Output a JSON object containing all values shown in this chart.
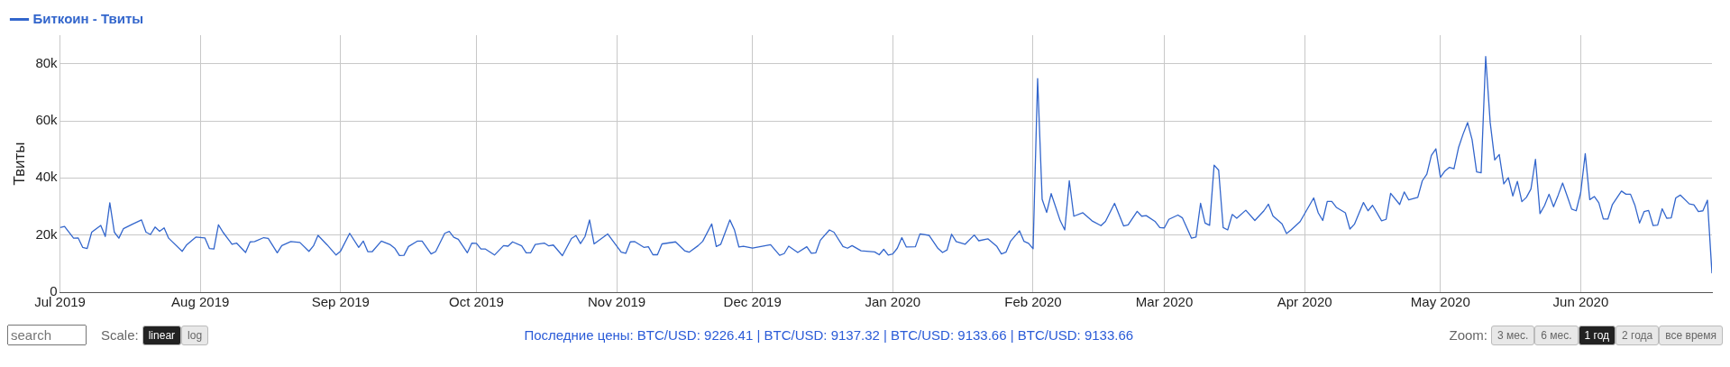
{
  "chart_data": {
    "type": "line",
    "ylabel": "Твиты",
    "legend": "top left",
    "grid": true,
    "marker": "none",
    "line_style": "solid",
    "xlim": [
      "2019-07-01",
      "2020-06-30"
    ],
    "ylim": [
      0,
      90000
    ],
    "xticks": [
      {
        "value": "2019-07-01",
        "label": "Jul 2019"
      },
      {
        "value": "2019-08-01",
        "label": "Aug 2019"
      },
      {
        "value": "2019-09-01",
        "label": "Sep 2019"
      },
      {
        "value": "2019-10-01",
        "label": "Oct 2019"
      },
      {
        "value": "2019-11-01",
        "label": "Nov 2019"
      },
      {
        "value": "2019-12-01",
        "label": "Dec 2019"
      },
      {
        "value": "2020-01-01",
        "label": "Jan 2020"
      },
      {
        "value": "2020-02-01",
        "label": "Feb 2020"
      },
      {
        "value": "2020-03-01",
        "label": "Mar 2020"
      },
      {
        "value": "2020-04-01",
        "label": "Apr 2020"
      },
      {
        "value": "2020-05-01",
        "label": "May 2020"
      },
      {
        "value": "2020-06-01",
        "label": "Jun 2020"
      }
    ],
    "yticks": [
      0,
      {
        "value": 20000,
        "label": "20k"
      },
      {
        "value": 40000,
        "label": "40k"
      },
      {
        "value": 60000,
        "label": "60k"
      },
      {
        "value": 80000,
        "label": "80k"
      }
    ],
    "annotations": [
      "search",
      "Scale:",
      "linear",
      "log",
      "Последние цены: BTC/USD: 9226.41 | BTC/USD: 9137.32 | BTC/USD: 9133.66 | BTC/USD: 9133.66",
      "Zoom:",
      "3 мес.",
      "6 мес.",
      "1 год",
      "2 года",
      "все время"
    ],
    "series": [
      {
        "name": "Биткоин - Твиты",
        "color": "#3366cc",
        "x": [
          "2019-07-01",
          "2019-07-02",
          "2019-07-04",
          "2019-07-05",
          "2019-07-06",
          "2019-07-07",
          "2019-07-08",
          "2019-07-10",
          "2019-07-11",
          "2019-07-12",
          "2019-07-13",
          "2019-07-14",
          "2019-07-15",
          "2019-07-17",
          "2019-07-19",
          "2019-07-20",
          "2019-07-21",
          "2019-07-22",
          "2019-07-23",
          "2019-07-24",
          "2019-07-25",
          "2019-07-28",
          "2019-07-29",
          "2019-07-31",
          "2019-08-02",
          "2019-08-03",
          "2019-08-04",
          "2019-08-05",
          "2019-08-06",
          "2019-08-08",
          "2019-08-09",
          "2019-08-11",
          "2019-08-12",
          "2019-08-13",
          "2019-08-15",
          "2019-08-16",
          "2019-08-18",
          "2019-08-19",
          "2019-08-21",
          "2019-08-23",
          "2019-08-25",
          "2019-08-26",
          "2019-08-27",
          "2019-08-29",
          "2019-08-31",
          "2019-09-01",
          "2019-09-03",
          "2019-09-05",
          "2019-09-06",
          "2019-09-07",
          "2019-09-08",
          "2019-09-10",
          "2019-09-12",
          "2019-09-13",
          "2019-09-14",
          "2019-09-15",
          "2019-09-16",
          "2019-09-18",
          "2019-09-19",
          "2019-09-21",
          "2019-09-22",
          "2019-09-24",
          "2019-09-25",
          "2019-09-26",
          "2019-09-27",
          "2019-09-29",
          "2019-09-30",
          "2019-10-01",
          "2019-10-02",
          "2019-10-03",
          "2019-10-05",
          "2019-10-07",
          "2019-10-08",
          "2019-10-09",
          "2019-10-11",
          "2019-10-12",
          "2019-10-13",
          "2019-10-14",
          "2019-10-16",
          "2019-10-17",
          "2019-10-18",
          "2019-10-20",
          "2019-10-22",
          "2019-10-23",
          "2019-10-24",
          "2019-10-25",
          "2019-10-26",
          "2019-10-27",
          "2019-10-30",
          "2019-11-02",
          "2019-11-03",
          "2019-11-04",
          "2019-11-05",
          "2019-11-07",
          "2019-11-08",
          "2019-11-09",
          "2019-11-10",
          "2019-11-11",
          "2019-11-14",
          "2019-11-16",
          "2019-11-17",
          "2019-11-19",
          "2019-11-20",
          "2019-11-22",
          "2019-11-23",
          "2019-11-24",
          "2019-11-26",
          "2019-11-27",
          "2019-11-28",
          "2019-11-29",
          "2019-12-01",
          "2019-12-05",
          "2019-12-07",
          "2019-12-08",
          "2019-12-09",
          "2019-12-11",
          "2019-12-13",
          "2019-12-14",
          "2019-12-15",
          "2019-12-16",
          "2019-12-18",
          "2019-12-19",
          "2019-12-21",
          "2019-12-22",
          "2019-12-23",
          "2019-12-25",
          "2019-12-28",
          "2019-12-29",
          "2019-12-30",
          "2019-12-31",
          "2020-01-01",
          "2020-01-02",
          "2020-01-03",
          "2020-01-04",
          "2020-01-06",
          "2020-01-07",
          "2020-01-09",
          "2020-01-11",
          "2020-01-12",
          "2020-01-13",
          "2020-01-14",
          "2020-01-15",
          "2020-01-17",
          "2020-01-19",
          "2020-01-20",
          "2020-01-22",
          "2020-01-24",
          "2020-01-25",
          "2020-01-26",
          "2020-01-27",
          "2020-01-29",
          "2020-01-30",
          "2020-01-31",
          "2020-02-01",
          "2020-02-02",
          "2020-02-03",
          "2020-02-04",
          "2020-02-05",
          "2020-02-07",
          "2020-02-08",
          "2020-02-09",
          "2020-02-10",
          "2020-02-12",
          "2020-02-14",
          "2020-02-16",
          "2020-02-17",
          "2020-02-19",
          "2020-02-21",
          "2020-02-22",
          "2020-02-24",
          "2020-02-25",
          "2020-02-26",
          "2020-02-28",
          "2020-02-29",
          "2020-03-01",
          "2020-03-02",
          "2020-03-04",
          "2020-03-05",
          "2020-03-07",
          "2020-03-08",
          "2020-03-09",
          "2020-03-10",
          "2020-03-11",
          "2020-03-12",
          "2020-03-13",
          "2020-03-14",
          "2020-03-15",
          "2020-03-16",
          "2020-03-17",
          "2020-03-19",
          "2020-03-21",
          "2020-03-23",
          "2020-03-24",
          "2020-03-25",
          "2020-03-27",
          "2020-03-28",
          "2020-03-29",
          "2020-03-31",
          "2020-04-03",
          "2020-04-04",
          "2020-04-05",
          "2020-04-06",
          "2020-04-07",
          "2020-04-08",
          "2020-04-10",
          "2020-04-11",
          "2020-04-12",
          "2020-04-14",
          "2020-04-15",
          "2020-04-16",
          "2020-04-18",
          "2020-04-19",
          "2020-04-20",
          "2020-04-22",
          "2020-04-23",
          "2020-04-24",
          "2020-04-26",
          "2020-04-27",
          "2020-04-28",
          "2020-04-29",
          "2020-04-30",
          "2020-05-01",
          "2020-05-02",
          "2020-05-03",
          "2020-05-04",
          "2020-05-05",
          "2020-05-06",
          "2020-05-07",
          "2020-05-08",
          "2020-05-09",
          "2020-05-10",
          "2020-05-11",
          "2020-05-12",
          "2020-05-13",
          "2020-05-14",
          "2020-05-15",
          "2020-05-16",
          "2020-05-17",
          "2020-05-18",
          "2020-05-19",
          "2020-05-20",
          "2020-05-21",
          "2020-05-22",
          "2020-05-23",
          "2020-05-24",
          "2020-05-25",
          "2020-05-26",
          "2020-05-27",
          "2020-05-28",
          "2020-05-29",
          "2020-05-30",
          "2020-05-31",
          "2020-06-01",
          "2020-06-02",
          "2020-06-03",
          "2020-06-04",
          "2020-06-05",
          "2020-06-06",
          "2020-06-07",
          "2020-06-08",
          "2020-06-10",
          "2020-06-11",
          "2020-06-12",
          "2020-06-13",
          "2020-06-14",
          "2020-06-15",
          "2020-06-16",
          "2020-06-17",
          "2020-06-18",
          "2020-06-19",
          "2020-06-20",
          "2020-06-21",
          "2020-06-22",
          "2020-06-23",
          "2020-06-25",
          "2020-06-26",
          "2020-06-27",
          "2020-06-28",
          "2020-06-29",
          "2020-06-30"
        ],
        "values": [
          22600,
          23000,
          18900,
          19000,
          15700,
          15300,
          21000,
          23400,
          19500,
          31300,
          21000,
          18900,
          22200,
          23800,
          25300,
          21000,
          20200,
          22800,
          21300,
          22500,
          18900,
          14300,
          16600,
          19300,
          19000,
          15300,
          15100,
          23600,
          21000,
          16800,
          17200,
          13900,
          17600,
          17700,
          19100,
          18800,
          13800,
          16300,
          17700,
          17400,
          14300,
          16200,
          19900,
          16600,
          13000,
          14400,
          20600,
          15700,
          17900,
          14200,
          14200,
          17900,
          16600,
          15300,
          12800,
          12900,
          16000,
          17900,
          17900,
          13400,
          14200,
          20600,
          21300,
          19200,
          18500,
          13800,
          17200,
          17100,
          15100,
          15100,
          13000,
          16300,
          16100,
          17600,
          16200,
          13800,
          13800,
          16700,
          17200,
          16200,
          16500,
          12800,
          18800,
          19800,
          17000,
          19500,
          25300,
          16900,
          20400,
          14000,
          13600,
          17600,
          17700,
          15700,
          15900,
          13100,
          13100,
          16900,
          17600,
          14500,
          14000,
          16300,
          17800,
          23900,
          16000,
          16800,
          25300,
          21900,
          15800,
          16100,
          15400,
          16600,
          12900,
          13500,
          16100,
          13900,
          15900,
          13600,
          13800,
          18200,
          21800,
          21000,
          16000,
          15400,
          16300,
          14500,
          14100,
          13100,
          15000,
          13000,
          13400,
          15400,
          19100,
          15800,
          15900,
          20400,
          19900,
          15300,
          13900,
          14800,
          20300,
          17700,
          16800,
          20000,
          18000,
          18700,
          16000,
          13400,
          14000,
          17800,
          21500,
          17800,
          17100,
          15200,
          74800,
          32500,
          27900,
          34500,
          25000,
          21800,
          39000,
          26600,
          27800,
          25000,
          23300,
          24800,
          31100,
          23200,
          23600,
          28300,
          26600,
          26800,
          24700,
          22600,
          22500,
          25500,
          27000,
          26000,
          18900,
          19300,
          31100,
          24200,
          23400,
          44500,
          42700,
          22600,
          21800,
          27200,
          25900,
          28700,
          25100,
          28500,
          30800,
          26700,
          23900,
          20500,
          21800,
          24700,
          33000,
          27800,
          25100,
          31800,
          31800,
          29700,
          27800,
          22100,
          23800,
          31400,
          28500,
          30400,
          25000,
          25500,
          34600,
          30700,
          35100,
          32300,
          33200,
          39000,
          41300,
          47900,
          50200,
          40200,
          42400,
          43700,
          43200,
          50600,
          55300,
          59400,
          53400,
          42100,
          41800,
          82500,
          59400,
          46300,
          48200,
          37900,
          40100,
          33700,
          38800,
          31700,
          33200,
          36100,
          46500,
          27500,
          30300,
          34300,
          29900,
          33900,
          38200,
          33700,
          29100,
          28500,
          34900,
          48500,
          32400,
          33500,
          31300,
          25600,
          25600,
          30700,
          35400,
          34300,
          34300,
          30300,
          24200,
          28200,
          28600,
          23300,
          23500,
          29200,
          25900,
          26000,
          33000,
          34000,
          30900,
          30600,
          28200,
          28500,
          32200,
          6600
        ]
      }
    ]
  }
}
